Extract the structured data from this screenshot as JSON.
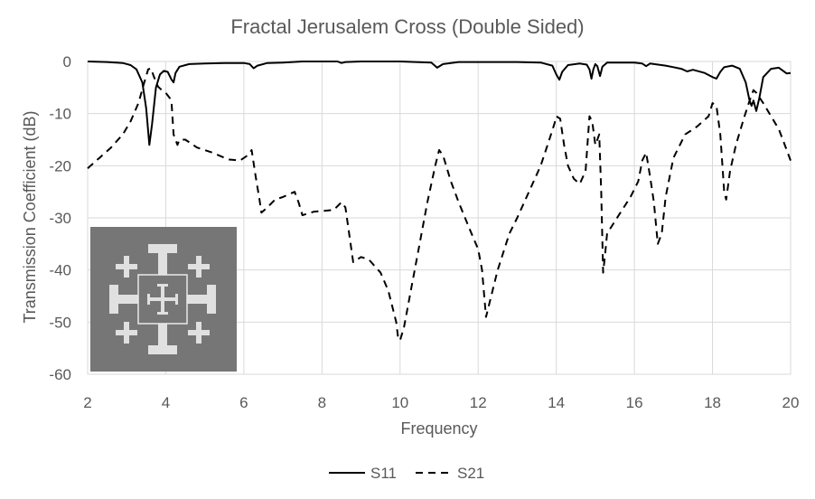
{
  "chart_data": {
    "type": "line",
    "title": "Fractal Jerusalem Cross (Double Sided)",
    "xlabel": "Frequency",
    "ylabel": "Transmission Coefficient (dB)",
    "xlim": [
      2,
      20
    ],
    "ylim": [
      -60,
      0
    ],
    "xticks": [
      2,
      4,
      6,
      8,
      10,
      12,
      14,
      16,
      18,
      20
    ],
    "yticks": [
      0,
      -10,
      -20,
      -30,
      -40,
      -50,
      -60
    ],
    "grid": true,
    "legend_position": "bottom",
    "series": [
      {
        "name": "S11",
        "style": "solid",
        "color": "#000000",
        "points": [
          [
            2.0,
            0.0
          ],
          [
            2.5,
            -0.1
          ],
          [
            2.9,
            -0.3
          ],
          [
            3.1,
            -0.7
          ],
          [
            3.25,
            -1.5
          ],
          [
            3.4,
            -4
          ],
          [
            3.5,
            -9
          ],
          [
            3.58,
            -16
          ],
          [
            3.65,
            -12
          ],
          [
            3.75,
            -5
          ],
          [
            3.85,
            -2.5
          ],
          [
            3.95,
            -1.8
          ],
          [
            4.05,
            -2
          ],
          [
            4.15,
            -3.5
          ],
          [
            4.2,
            -4
          ],
          [
            4.25,
            -2.2
          ],
          [
            4.35,
            -1
          ],
          [
            4.6,
            -0.5
          ],
          [
            5.0,
            -0.4
          ],
          [
            5.5,
            -0.3
          ],
          [
            6.0,
            -0.3
          ],
          [
            6.15,
            -0.5
          ],
          [
            6.25,
            -1.3
          ],
          [
            6.35,
            -0.8
          ],
          [
            6.6,
            -0.3
          ],
          [
            7.0,
            -0.2
          ],
          [
            7.5,
            0.0
          ],
          [
            8.0,
            0.0
          ],
          [
            8.4,
            0.0
          ],
          [
            8.5,
            -0.3
          ],
          [
            8.6,
            -0.1
          ],
          [
            9.0,
            0.0
          ],
          [
            10.0,
            0.0
          ],
          [
            10.8,
            -0.2
          ],
          [
            10.95,
            -1.2
          ],
          [
            11.1,
            -0.5
          ],
          [
            11.5,
            -0.1
          ],
          [
            12.0,
            -0.1
          ],
          [
            13.0,
            -0.1
          ],
          [
            13.6,
            -0.2
          ],
          [
            13.9,
            -0.8
          ],
          [
            14.0,
            -2.5
          ],
          [
            14.08,
            -3.5
          ],
          [
            14.15,
            -2
          ],
          [
            14.3,
            -0.7
          ],
          [
            14.6,
            -0.4
          ],
          [
            14.78,
            -0.6
          ],
          [
            14.85,
            -1.5
          ],
          [
            14.9,
            -3.3
          ],
          [
            14.95,
            -1.5
          ],
          [
            15.0,
            -0.5
          ],
          [
            15.05,
            -0.9
          ],
          [
            15.12,
            -2.8
          ],
          [
            15.18,
            -1
          ],
          [
            15.3,
            -0.2
          ],
          [
            15.6,
            -0.2
          ],
          [
            16.0,
            -0.2
          ],
          [
            16.2,
            -0.4
          ],
          [
            16.3,
            -0.9
          ],
          [
            16.4,
            -0.4
          ],
          [
            16.8,
            -0.8
          ],
          [
            17.0,
            -1.1
          ],
          [
            17.2,
            -1.4
          ],
          [
            17.35,
            -1.9
          ],
          [
            17.5,
            -1.6
          ],
          [
            17.8,
            -2.2
          ],
          [
            18.0,
            -3
          ],
          [
            18.1,
            -3.3
          ],
          [
            18.2,
            -2
          ],
          [
            18.3,
            -1.1
          ],
          [
            18.5,
            -0.8
          ],
          [
            18.7,
            -1.4
          ],
          [
            18.85,
            -4
          ],
          [
            18.95,
            -7.5
          ],
          [
            19.0,
            -8.5
          ],
          [
            19.05,
            -7.5
          ],
          [
            19.12,
            -9.5
          ],
          [
            19.2,
            -7
          ],
          [
            19.3,
            -3
          ],
          [
            19.5,
            -1.4
          ],
          [
            19.7,
            -1.2
          ],
          [
            19.9,
            -2.3
          ],
          [
            20.0,
            -2.2
          ]
        ]
      },
      {
        "name": "S21",
        "style": "dashed",
        "color": "#000000",
        "points": [
          [
            2.0,
            -20.5
          ],
          [
            2.3,
            -18.5
          ],
          [
            2.6,
            -16.5
          ],
          [
            2.9,
            -14
          ],
          [
            3.1,
            -11.5
          ],
          [
            3.3,
            -8
          ],
          [
            3.45,
            -4
          ],
          [
            3.55,
            -1.5
          ],
          [
            3.62,
            -1.3
          ],
          [
            3.7,
            -3
          ],
          [
            3.8,
            -4.8
          ],
          [
            3.9,
            -5.5
          ],
          [
            4.0,
            -6
          ],
          [
            4.1,
            -7
          ],
          [
            4.15,
            -8
          ],
          [
            4.2,
            -14
          ],
          [
            4.3,
            -16
          ],
          [
            4.35,
            -15
          ],
          [
            4.5,
            -15
          ],
          [
            4.8,
            -16.5
          ],
          [
            5.2,
            -17.5
          ],
          [
            5.6,
            -18.8
          ],
          [
            5.9,
            -19
          ],
          [
            6.1,
            -18
          ],
          [
            6.2,
            -17
          ],
          [
            6.3,
            -22
          ],
          [
            6.4,
            -26.5
          ],
          [
            6.45,
            -29
          ],
          [
            6.6,
            -28
          ],
          [
            6.8,
            -26.5
          ],
          [
            7.0,
            -26
          ],
          [
            7.3,
            -25
          ],
          [
            7.4,
            -27
          ],
          [
            7.5,
            -29.5
          ],
          [
            7.8,
            -28.8
          ],
          [
            8.3,
            -28.5
          ],
          [
            8.5,
            -27
          ],
          [
            8.6,
            -28
          ],
          [
            8.8,
            -38.5
          ],
          [
            9.0,
            -37.5
          ],
          [
            9.2,
            -38
          ],
          [
            9.5,
            -40.5
          ],
          [
            9.7,
            -44
          ],
          [
            9.9,
            -50
          ],
          [
            9.95,
            -53
          ],
          [
            10.0,
            -53.5
          ],
          [
            10.1,
            -51
          ],
          [
            10.3,
            -43
          ],
          [
            10.5,
            -35
          ],
          [
            10.7,
            -27
          ],
          [
            10.9,
            -20
          ],
          [
            11.0,
            -17
          ],
          [
            11.1,
            -18
          ],
          [
            11.3,
            -23
          ],
          [
            11.5,
            -27
          ],
          [
            11.8,
            -32.5
          ],
          [
            12.0,
            -36
          ],
          [
            12.1,
            -40
          ],
          [
            12.2,
            -49
          ],
          [
            12.3,
            -46
          ],
          [
            12.5,
            -40
          ],
          [
            12.8,
            -33
          ],
          [
            13.0,
            -30
          ],
          [
            13.3,
            -25
          ],
          [
            13.6,
            -20
          ],
          [
            13.8,
            -15.5
          ],
          [
            13.95,
            -12
          ],
          [
            14.0,
            -10.5
          ],
          [
            14.1,
            -11
          ],
          [
            14.2,
            -16
          ],
          [
            14.3,
            -20
          ],
          [
            14.45,
            -22.5
          ],
          [
            14.6,
            -23.5
          ],
          [
            14.75,
            -21
          ],
          [
            14.85,
            -10.5
          ],
          [
            14.92,
            -11.5
          ],
          [
            15.0,
            -16
          ],
          [
            15.05,
            -15
          ],
          [
            15.1,
            -14
          ],
          [
            15.15,
            -25
          ],
          [
            15.2,
            -40.5
          ],
          [
            15.25,
            -37
          ],
          [
            15.3,
            -33
          ],
          [
            15.6,
            -29.5
          ],
          [
            15.9,
            -26
          ],
          [
            16.1,
            -23
          ],
          [
            16.2,
            -19
          ],
          [
            16.3,
            -17.5
          ],
          [
            16.4,
            -22
          ],
          [
            16.5,
            -27
          ],
          [
            16.6,
            -35
          ],
          [
            16.7,
            -33
          ],
          [
            16.8,
            -26
          ],
          [
            17.0,
            -18.5
          ],
          [
            17.3,
            -14
          ],
          [
            17.6,
            -12.5
          ],
          [
            17.9,
            -10.5
          ],
          [
            18.0,
            -8
          ],
          [
            18.1,
            -8.5
          ],
          [
            18.2,
            -14
          ],
          [
            18.3,
            -25
          ],
          [
            18.35,
            -26.5
          ],
          [
            18.45,
            -21
          ],
          [
            18.6,
            -16
          ],
          [
            18.8,
            -11
          ],
          [
            18.95,
            -7.5
          ],
          [
            19.05,
            -5.5
          ],
          [
            19.12,
            -6
          ],
          [
            19.3,
            -8
          ],
          [
            19.5,
            -10.5
          ],
          [
            19.7,
            -13
          ],
          [
            19.9,
            -17
          ],
          [
            20.0,
            -19
          ]
        ]
      }
    ]
  },
  "inset": {
    "colors": {
      "background": "#767676",
      "cross": "#e0e0e0",
      "frame": "#e8e8e8"
    }
  }
}
